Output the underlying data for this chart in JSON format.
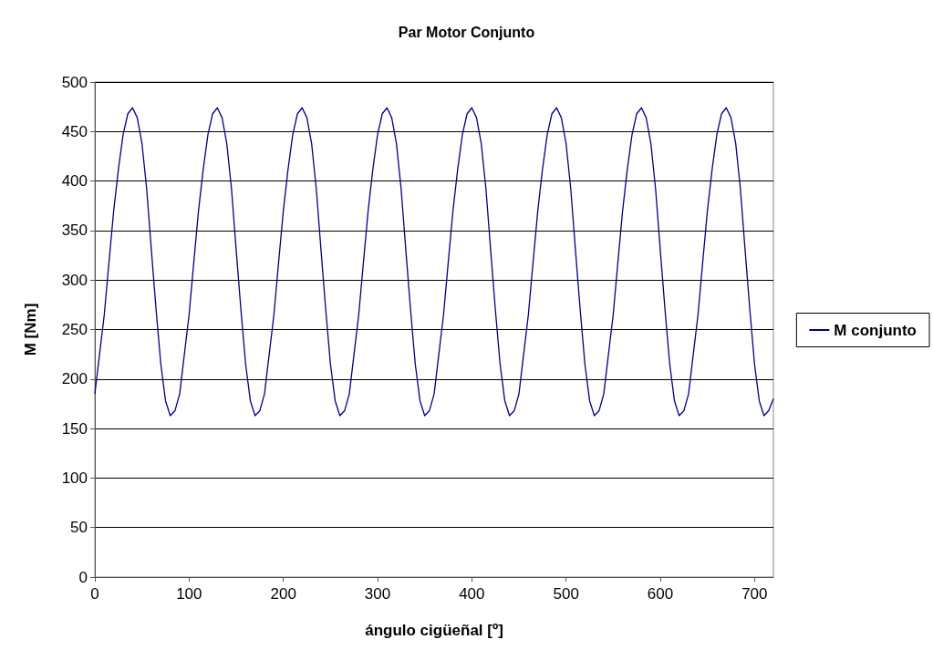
{
  "chart_data": {
    "type": "line",
    "title": "Par Motor Conjunto",
    "xlabel": "ángulo cigüeñal [º]",
    "ylabel": "M [Nm]",
    "x": [
      0,
      5,
      10,
      15,
      20,
      25,
      30,
      35,
      40,
      45,
      50,
      55,
      60,
      65,
      70,
      75,
      80,
      85,
      90,
      95,
      100,
      105,
      110,
      115,
      120,
      125,
      130,
      135,
      140,
      145,
      150,
      155,
      160,
      165,
      170,
      175,
      180,
      185,
      190,
      195,
      200,
      205,
      210,
      215,
      220,
      225,
      230,
      235,
      240,
      245,
      250,
      255,
      260,
      265,
      270,
      275,
      280,
      285,
      290,
      295,
      300,
      305,
      310,
      315,
      320,
      325,
      330,
      335,
      340,
      345,
      350,
      355,
      360,
      365,
      370,
      375,
      380,
      385,
      390,
      395,
      400,
      405,
      410,
      415,
      420,
      425,
      430,
      435,
      440,
      445,
      450,
      455,
      460,
      465,
      470,
      475,
      480,
      485,
      490,
      495,
      500,
      505,
      510,
      515,
      520,
      525,
      530,
      535,
      540,
      545,
      550,
      555,
      560,
      565,
      570,
      575,
      580,
      585,
      590,
      595,
      600,
      605,
      610,
      615,
      620,
      625,
      630,
      635,
      640,
      645,
      650,
      655,
      660,
      665,
      670,
      675,
      680,
      685,
      690,
      695,
      700,
      705,
      710,
      715,
      720
    ],
    "series": [
      {
        "name": "M conjunto",
        "color": "#000080",
        "values": [
          185,
          225,
          265,
          318,
          370,
          412,
          447,
          468,
          474,
          464,
          438,
          392,
          330,
          270,
          215,
          178,
          163,
          168,
          185,
          225,
          265,
          318,
          370,
          412,
          447,
          468,
          474,
          464,
          438,
          392,
          330,
          270,
          215,
          178,
          163,
          168,
          185,
          225,
          265,
          318,
          370,
          412,
          447,
          468,
          474,
          464,
          438,
          392,
          330,
          270,
          215,
          178,
          163,
          168,
          185,
          225,
          265,
          318,
          370,
          412,
          447,
          468,
          474,
          464,
          438,
          392,
          330,
          270,
          215,
          178,
          163,
          168,
          185,
          225,
          265,
          318,
          370,
          412,
          447,
          468,
          474,
          464,
          438,
          392,
          330,
          270,
          215,
          178,
          163,
          168,
          185,
          225,
          265,
          318,
          370,
          412,
          447,
          468,
          474,
          464,
          438,
          392,
          330,
          270,
          215,
          178,
          163,
          168,
          185,
          225,
          265,
          318,
          370,
          412,
          447,
          468,
          474,
          464,
          438,
          392,
          330,
          270,
          215,
          178,
          163,
          168,
          185,
          225,
          265,
          318,
          370,
          412,
          447,
          468,
          474,
          464,
          438,
          392,
          330,
          270,
          215,
          178,
          163,
          168,
          180
        ]
      }
    ],
    "xlim": [
      0,
      720
    ],
    "xticks": [
      0,
      100,
      200,
      300,
      400,
      500,
      600,
      700
    ],
    "ylim": [
      0,
      500
    ],
    "yticks": [
      0,
      50,
      100,
      150,
      200,
      250,
      300,
      350,
      400,
      450,
      500
    ],
    "grid": "y",
    "legend": "right",
    "marker": "none",
    "line_style": "solid"
  }
}
